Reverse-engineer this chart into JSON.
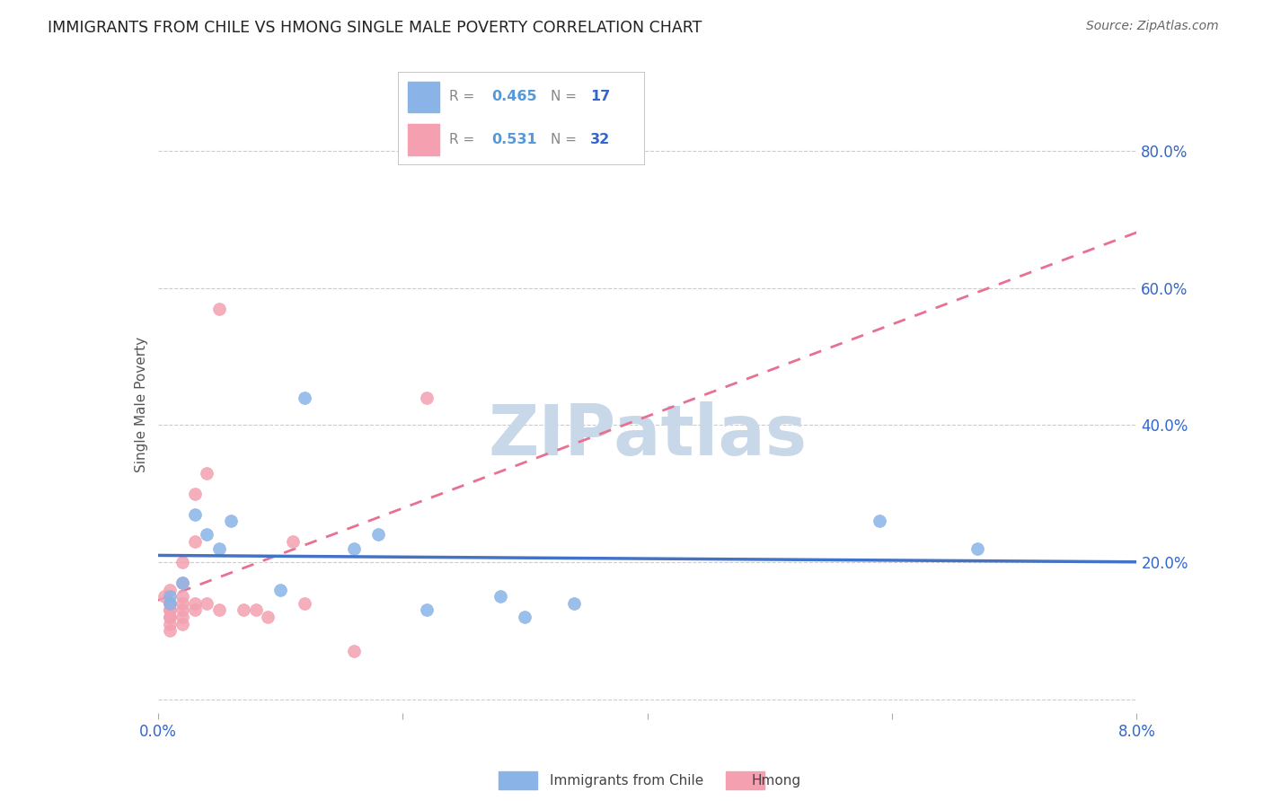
{
  "title": "IMMIGRANTS FROM CHILE VS HMONG SINGLE MALE POVERTY CORRELATION CHART",
  "source": "Source: ZipAtlas.com",
  "ylabel_label": "Single Male Poverty",
  "xlim": [
    0.0,
    0.08
  ],
  "ylim": [
    -0.02,
    0.88
  ],
  "xticks": [
    0.0,
    0.02,
    0.04,
    0.06,
    0.08
  ],
  "xtick_labels": [
    "0.0%",
    "",
    "",
    "",
    "8.0%"
  ],
  "ytick_positions": [
    0.0,
    0.2,
    0.4,
    0.6,
    0.8
  ],
  "ytick_labels": [
    "",
    "20.0%",
    "40.0%",
    "60.0%",
    "80.0%"
  ],
  "grid_color": "#cccccc",
  "background_color": "#ffffff",
  "blue_x": [
    0.001,
    0.001,
    0.002,
    0.003,
    0.004,
    0.005,
    0.006,
    0.01,
    0.012,
    0.016,
    0.018,
    0.022,
    0.028,
    0.03,
    0.034,
    0.059,
    0.067
  ],
  "blue_y": [
    0.15,
    0.14,
    0.17,
    0.27,
    0.24,
    0.22,
    0.26,
    0.16,
    0.44,
    0.22,
    0.24,
    0.13,
    0.15,
    0.12,
    0.14,
    0.26,
    0.22
  ],
  "blue_color": "#8ab4e8",
  "blue_line_color": "#4472c4",
  "blue_R": 0.465,
  "blue_N": 17,
  "pink_x": [
    0.0005,
    0.001,
    0.001,
    0.001,
    0.001,
    0.001,
    0.001,
    0.001,
    0.001,
    0.001,
    0.002,
    0.002,
    0.002,
    0.002,
    0.002,
    0.002,
    0.002,
    0.003,
    0.003,
    0.003,
    0.003,
    0.004,
    0.004,
    0.005,
    0.005,
    0.007,
    0.008,
    0.009,
    0.011,
    0.012,
    0.016,
    0.022
  ],
  "pink_y": [
    0.15,
    0.14,
    0.13,
    0.12,
    0.11,
    0.1,
    0.16,
    0.14,
    0.13,
    0.12,
    0.2,
    0.17,
    0.15,
    0.14,
    0.13,
    0.12,
    0.11,
    0.3,
    0.23,
    0.14,
    0.13,
    0.33,
    0.14,
    0.57,
    0.13,
    0.13,
    0.13,
    0.12,
    0.23,
    0.14,
    0.07,
    0.44
  ],
  "pink_color": "#f4a0b0",
  "pink_line_color": "#e87090",
  "pink_R": 0.531,
  "pink_N": 32,
  "legend_box_color": "#ffffff",
  "R_label_color": "#5599dd",
  "N_label_color": "#3366cc",
  "watermark_text": "ZIPatlas",
  "watermark_color": "#c8d8e8"
}
